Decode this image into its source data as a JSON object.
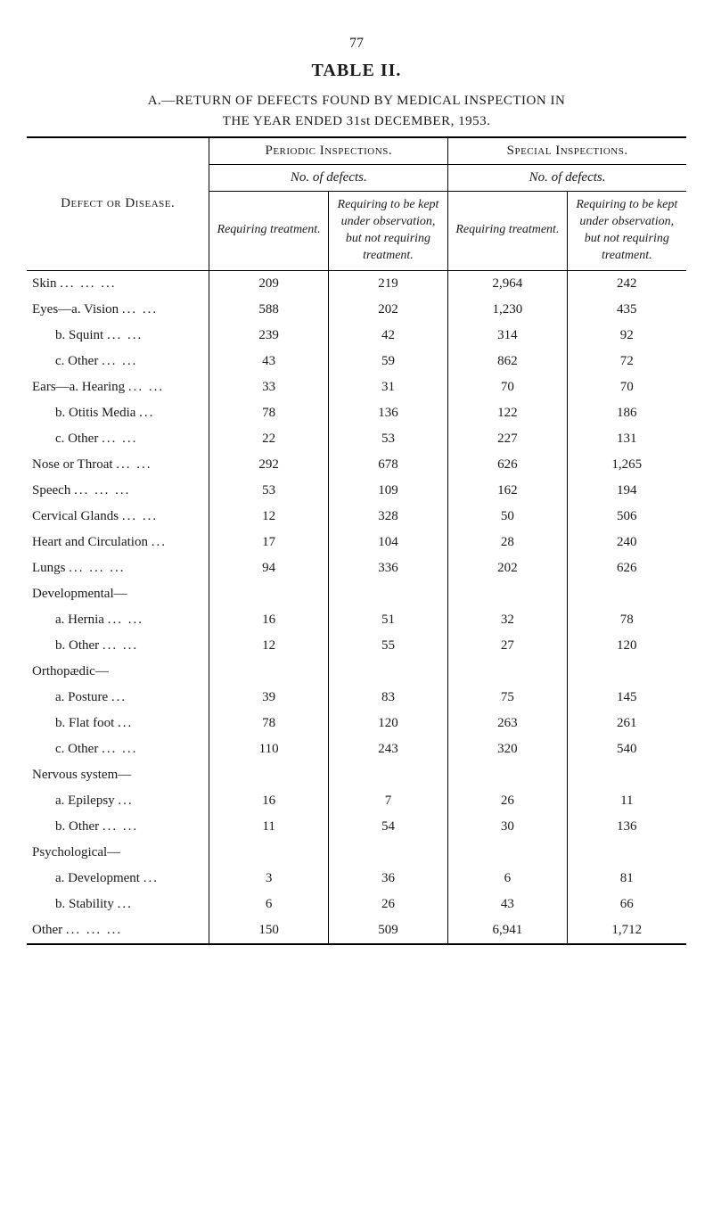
{
  "page_number": "77",
  "table_label": "TABLE II.",
  "title_line1": "A.—RETURN OF DEFECTS FOUND BY MEDICAL INSPECTION IN",
  "title_line2": "THE YEAR ENDED 31st DECEMBER, 1953.",
  "header": {
    "defect": "Defect or Disease.",
    "periodic": "Periodic Inspections.",
    "special": "Special Inspections.",
    "no_defects": "No. of defects.",
    "req_treat": "Requiring\ntreatment.",
    "req_obs": "Requiring to\nbe kept under\nobservation,\nbut not\nrequiring\ntreatment."
  },
  "sections": {
    "developmental": "Developmental—",
    "orthopaedic": "Orthopædic—",
    "nervous": "Nervous system—",
    "psychological": "Psychological—"
  },
  "rows": [
    {
      "label": "Skin",
      "indent": "row",
      "dots": "...   ...   ...",
      "p_req": "209",
      "p_obs": "219",
      "s_req": "2,964",
      "s_obs": "242"
    },
    {
      "label": "Eyes—a. Vision",
      "indent": "first",
      "dots": "...   ...",
      "p_req": "588",
      "p_obs": "202",
      "s_req": "1,230",
      "s_obs": "435"
    },
    {
      "label": "b. Squint",
      "indent": "sub",
      "dots": "...   ...",
      "p_req": "239",
      "p_obs": "42",
      "s_req": "314",
      "s_obs": "92"
    },
    {
      "label": "c. Other",
      "indent": "sub",
      "dots": "...   ...",
      "p_req": "43",
      "p_obs": "59",
      "s_req": "862",
      "s_obs": "72"
    },
    {
      "label": "Ears—a. Hearing",
      "indent": "first",
      "dots": "...   ...",
      "p_req": "33",
      "p_obs": "31",
      "s_req": "70",
      "s_obs": "70"
    },
    {
      "label": "b. Otitis Media",
      "indent": "sub",
      "dots": "...",
      "p_req": "78",
      "p_obs": "136",
      "s_req": "122",
      "s_obs": "186"
    },
    {
      "label": "c. Other",
      "indent": "sub",
      "dots": "...   ...",
      "p_req": "22",
      "p_obs": "53",
      "s_req": "227",
      "s_obs": "131"
    },
    {
      "label": "Nose or Throat",
      "indent": "row",
      "dots": "...   ...",
      "p_req": "292",
      "p_obs": "678",
      "s_req": "626",
      "s_obs": "1,265"
    },
    {
      "label": "Speech",
      "indent": "row",
      "dots": "...   ...   ...",
      "p_req": "53",
      "p_obs": "109",
      "s_req": "162",
      "s_obs": "194"
    },
    {
      "label": "Cervical Glands",
      "indent": "row",
      "dots": "...   ...",
      "p_req": "12",
      "p_obs": "328",
      "s_req": "50",
      "s_obs": "506"
    },
    {
      "label": "Heart and Circulation",
      "indent": "row",
      "dots": "...",
      "p_req": "17",
      "p_obs": "104",
      "s_req": "28",
      "s_obs": "240"
    },
    {
      "label": "Lungs",
      "indent": "row",
      "dots": "...   ...   ...",
      "p_req": "94",
      "p_obs": "336",
      "s_req": "202",
      "s_obs": "626"
    },
    {
      "section": "developmental"
    },
    {
      "label": "a. Hernia",
      "indent": "sub",
      "dots": "...   ...",
      "p_req": "16",
      "p_obs": "51",
      "s_req": "32",
      "s_obs": "78"
    },
    {
      "label": "b. Other",
      "indent": "sub",
      "dots": "...   ...",
      "p_req": "12",
      "p_obs": "55",
      "s_req": "27",
      "s_obs": "120"
    },
    {
      "section": "orthopaedic"
    },
    {
      "label": "a. Posture",
      "indent": "sub",
      "dots": "...",
      "p_req": "39",
      "p_obs": "83",
      "s_req": "75",
      "s_obs": "145"
    },
    {
      "label": "b. Flat foot",
      "indent": "sub",
      "dots": "...",
      "p_req": "78",
      "p_obs": "120",
      "s_req": "263",
      "s_obs": "261"
    },
    {
      "label": "c. Other",
      "indent": "sub",
      "dots": "...   ...",
      "p_req": "110",
      "p_obs": "243",
      "s_req": "320",
      "s_obs": "540"
    },
    {
      "section": "nervous"
    },
    {
      "label": "a. Epilepsy",
      "indent": "sub",
      "dots": "...",
      "p_req": "16",
      "p_obs": "7",
      "s_req": "26",
      "s_obs": "11"
    },
    {
      "label": "b. Other",
      "indent": "sub",
      "dots": "...   ...",
      "p_req": "11",
      "p_obs": "54",
      "s_req": "30",
      "s_obs": "136"
    },
    {
      "section": "psychological"
    },
    {
      "label": "a. Development",
      "indent": "sub",
      "dots": "...",
      "p_req": "3",
      "p_obs": "36",
      "s_req": "6",
      "s_obs": "81"
    },
    {
      "label": "b. Stability",
      "indent": "sub",
      "dots": "...",
      "p_req": "6",
      "p_obs": "26",
      "s_req": "43",
      "s_obs": "66"
    },
    {
      "label": "Other",
      "indent": "row",
      "dots": "...   ...   ...",
      "p_req": "150",
      "p_obs": "509",
      "s_req": "6,941",
      "s_obs": "1,712"
    }
  ]
}
